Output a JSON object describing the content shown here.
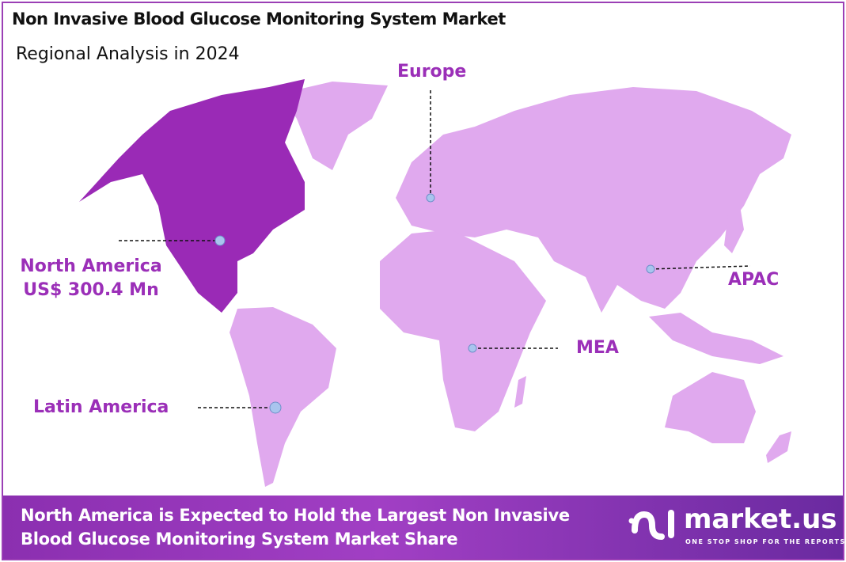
{
  "header": {
    "title": "Non Invasive Blood Glucose Monitoring System Market",
    "subtitle": "Regional Analysis in 2024"
  },
  "colors": {
    "highlight": "#9a2ab6",
    "other": "#e0a9ee",
    "label": "#9b2fb8",
    "marker": "#a9c4ee",
    "border": "#9b3fb5"
  },
  "regions": [
    {
      "name": "North America",
      "value": "US$ 300.4 Mn",
      "highlighted": true
    },
    {
      "name": "Europe"
    },
    {
      "name": "APAC"
    },
    {
      "name": "MEA"
    },
    {
      "name": "Latin America"
    }
  ],
  "footer": {
    "line1": "North America is Expected to Hold the Largest Non Invasive",
    "line2": "Blood Glucose Monitoring System Market Share"
  },
  "logo": {
    "name": "market.us",
    "tagline": "ONE STOP SHOP FOR THE REPORTS"
  }
}
